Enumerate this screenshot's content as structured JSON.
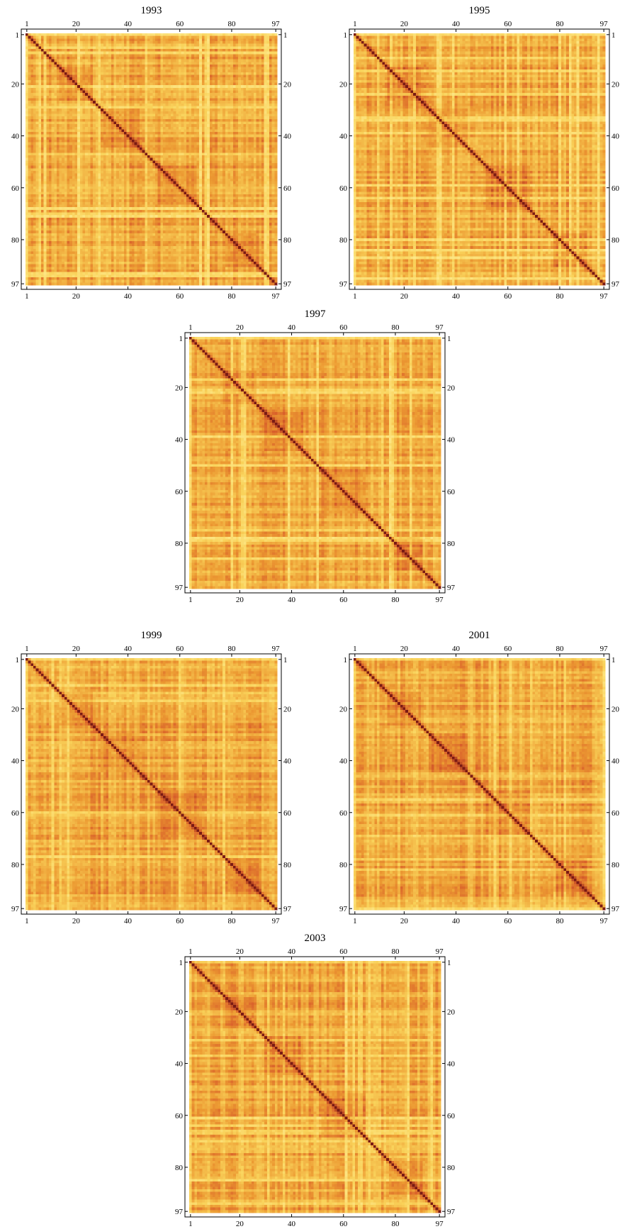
{
  "chart_data": [
    {
      "type": "heatmap",
      "title": "1993",
      "x_ticks": [
        1,
        20,
        40,
        60,
        80,
        97
      ],
      "y_ticks": [
        1,
        20,
        40,
        60,
        80,
        97
      ],
      "xlim": [
        1,
        97
      ],
      "ylim": [
        1,
        97
      ],
      "diagonal_value": 1.0,
      "colormap": [
        "#fff3a0",
        "#f9d25a",
        "#ec9a32",
        "#d9602a",
        "#7a1b14"
      ],
      "seed": 1993,
      "blocks": [
        [
          14,
          26
        ],
        [
          30,
          44
        ],
        [
          52,
          66
        ],
        [
          78,
          90
        ]
      ],
      "grid": false
    },
    {
      "type": "heatmap",
      "title": "1995",
      "x_ticks": [
        1,
        20,
        40,
        60,
        80,
        97
      ],
      "y_ticks": [
        1,
        20,
        40,
        60,
        80,
        97
      ],
      "xlim": [
        1,
        97
      ],
      "ylim": [
        1,
        97
      ],
      "diagonal_value": 1.0,
      "colormap": [
        "#fff3a0",
        "#f9d25a",
        "#ec9a32",
        "#d9602a",
        "#7a1b14"
      ],
      "seed": 1995,
      "blocks": [
        [
          14,
          26
        ],
        [
          30,
          44
        ],
        [
          52,
          68
        ],
        [
          78,
          90
        ]
      ],
      "grid": false
    },
    {
      "type": "heatmap",
      "title": "1997",
      "x_ticks": [
        1,
        20,
        40,
        60,
        80,
        97
      ],
      "y_ticks": [
        1,
        20,
        40,
        60,
        80,
        97
      ],
      "xlim": [
        1,
        97
      ],
      "ylim": [
        1,
        97
      ],
      "diagonal_value": 1.0,
      "colormap": [
        "#fff3a0",
        "#f9d25a",
        "#ec9a32",
        "#d9602a",
        "#7a1b14"
      ],
      "seed": 1997,
      "blocks": [
        [
          14,
          26
        ],
        [
          30,
          44
        ],
        [
          52,
          68
        ],
        [
          78,
          90
        ]
      ],
      "grid": false
    },
    {
      "type": "heatmap",
      "title": "1999",
      "x_ticks": [
        1,
        20,
        40,
        60,
        80,
        97
      ],
      "y_ticks": [
        1,
        20,
        40,
        60,
        80,
        97
      ],
      "xlim": [
        1,
        97
      ],
      "ylim": [
        1,
        97
      ],
      "diagonal_value": 1.0,
      "colormap": [
        "#fff3a0",
        "#f9d25a",
        "#ec9a32",
        "#d9602a",
        "#7a1b14"
      ],
      "seed": 1999,
      "blocks": [
        [
          14,
          26
        ],
        [
          30,
          44
        ],
        [
          52,
          68
        ],
        [
          78,
          90
        ]
      ],
      "grid": false
    },
    {
      "type": "heatmap",
      "title": "2001",
      "x_ticks": [
        1,
        20,
        40,
        60,
        80,
        97
      ],
      "y_ticks": [
        1,
        20,
        40,
        60,
        80,
        97
      ],
      "xlim": [
        1,
        97
      ],
      "ylim": [
        1,
        97
      ],
      "diagonal_value": 1.0,
      "colormap": [
        "#fff3a0",
        "#f9d25a",
        "#ec9a32",
        "#d9602a",
        "#7a1b14"
      ],
      "seed": 2001,
      "blocks": [
        [
          14,
          26
        ],
        [
          30,
          44
        ],
        [
          52,
          68
        ],
        [
          78,
          90
        ]
      ],
      "grid": false
    },
    {
      "type": "heatmap",
      "title": "2003",
      "x_ticks": [
        1,
        20,
        40,
        60,
        80,
        97
      ],
      "y_ticks": [
        1,
        20,
        40,
        60,
        80,
        97
      ],
      "xlim": [
        1,
        97
      ],
      "ylim": [
        1,
        97
      ],
      "diagonal_value": 1.0,
      "colormap": [
        "#fff3a0",
        "#f9d25a",
        "#ec9a32",
        "#d9602a",
        "#7a1b14"
      ],
      "seed": 2003,
      "blocks": [
        [
          14,
          26
        ],
        [
          30,
          44
        ],
        [
          52,
          68
        ],
        [
          78,
          90
        ]
      ],
      "grid": false
    }
  ]
}
